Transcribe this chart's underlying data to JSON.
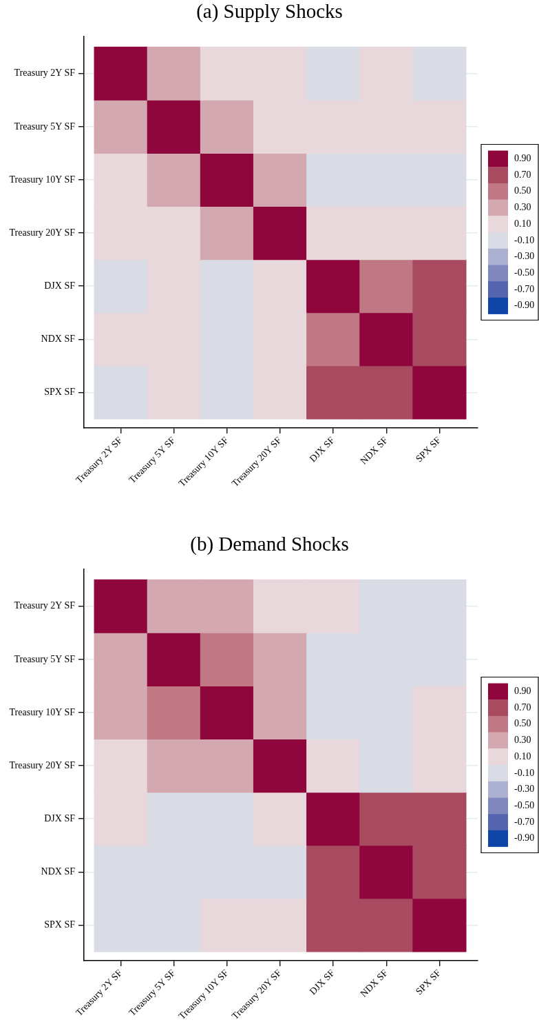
{
  "chart_data": [
    {
      "type": "heatmap",
      "title": "(a) Supply Shocks",
      "categories": [
        "Treasury 2Y SF",
        "Treasury 5Y SF",
        "Treasury 10Y SF",
        "Treasury 20Y SF",
        "DJX SF",
        "NDX SF",
        "SPX SF"
      ],
      "y_categories": [
        "Treasury 2Y SF",
        "Treasury 5Y SF",
        "Treasury 10Y SF",
        "Treasury 20Y SF",
        "DJX SF",
        "NDX SF",
        "SPX SF"
      ],
      "cells": [
        [
          0.9,
          0.3,
          0.1,
          0.1,
          -0.1,
          0.1,
          -0.1
        ],
        [
          0.3,
          0.9,
          0.3,
          0.1,
          0.1,
          0.1,
          0.1
        ],
        [
          0.1,
          0.3,
          0.9,
          0.3,
          -0.1,
          -0.1,
          -0.1
        ],
        [
          0.1,
          0.1,
          0.3,
          0.9,
          0.1,
          0.1,
          0.1
        ],
        [
          -0.1,
          0.1,
          -0.1,
          0.1,
          0.9,
          0.5,
          0.7
        ],
        [
          0.1,
          0.1,
          -0.1,
          0.1,
          0.5,
          0.9,
          0.7
        ],
        [
          -0.1,
          0.1,
          -0.1,
          0.1,
          0.7,
          0.7,
          0.9
        ]
      ],
      "clim": [
        -1,
        1
      ],
      "cticks": [
        {
          "value": 0.9,
          "label": "0.90"
        },
        {
          "value": 0.7,
          "label": "0.70"
        },
        {
          "value": 0.5,
          "label": "0.50"
        },
        {
          "value": 0.3,
          "label": "0.30"
        },
        {
          "value": 0.1,
          "label": "0.10"
        },
        {
          "value": -0.1,
          "label": "-0.10"
        },
        {
          "value": -0.3,
          "label": "-0.30"
        },
        {
          "value": -0.5,
          "label": "-0.50"
        },
        {
          "value": -0.7,
          "label": "-0.70"
        },
        {
          "value": -0.9,
          "label": "-0.90"
        }
      ],
      "colors": [
        "#8e063b",
        "#a84a60",
        "#c07884",
        "#d4a8b0",
        "#e8d8dc",
        "#d9dce5",
        "#acb1d2",
        "#8088be",
        "#5464ae",
        "#0e45a6"
      ],
      "grid": "y"
    },
    {
      "type": "heatmap",
      "title": "(b) Demand Shocks",
      "categories": [
        "Treasury 2Y SF",
        "Treasury 5Y SF",
        "Treasury 10Y SF",
        "Treasury 20Y SF",
        "DJX SF",
        "NDX SF",
        "SPX SF"
      ],
      "y_categories": [
        "Treasury 2Y SF",
        "Treasury 5Y SF",
        "Treasury 10Y SF",
        "Treasury 20Y SF",
        "DJX SF",
        "NDX SF",
        "SPX SF"
      ],
      "cells": [
        [
          0.9,
          0.3,
          0.3,
          0.1,
          0.1,
          -0.1,
          -0.1
        ],
        [
          0.3,
          0.9,
          0.5,
          0.3,
          -0.1,
          -0.1,
          -0.1
        ],
        [
          0.3,
          0.5,
          0.9,
          0.3,
          -0.1,
          -0.1,
          0.1
        ],
        [
          0.1,
          0.3,
          0.3,
          0.9,
          0.1,
          -0.1,
          0.1
        ],
        [
          0.1,
          -0.1,
          -0.1,
          0.1,
          0.9,
          0.7,
          0.7
        ],
        [
          -0.1,
          -0.1,
          -0.1,
          -0.1,
          0.7,
          0.9,
          0.7
        ],
        [
          -0.1,
          -0.1,
          0.1,
          0.1,
          0.7,
          0.7,
          0.9
        ]
      ],
      "clim": [
        -1,
        1
      ],
      "cticks": [
        {
          "value": 0.9,
          "label": "0.90"
        },
        {
          "value": 0.7,
          "label": "0.70"
        },
        {
          "value": 0.5,
          "label": "0.50"
        },
        {
          "value": 0.3,
          "label": "0.30"
        },
        {
          "value": 0.1,
          "label": "0.10"
        },
        {
          "value": -0.1,
          "label": "-0.10"
        },
        {
          "value": -0.3,
          "label": "-0.30"
        },
        {
          "value": -0.5,
          "label": "-0.50"
        },
        {
          "value": -0.7,
          "label": "-0.70"
        },
        {
          "value": -0.9,
          "label": "-0.90"
        }
      ],
      "colors": [
        "#8e063b",
        "#a84a60",
        "#c07884",
        "#d4a8b0",
        "#e8d8dc",
        "#d9dce5",
        "#acb1d2",
        "#8088be",
        "#5464ae",
        "#0e45a6"
      ],
      "grid": "y"
    }
  ]
}
